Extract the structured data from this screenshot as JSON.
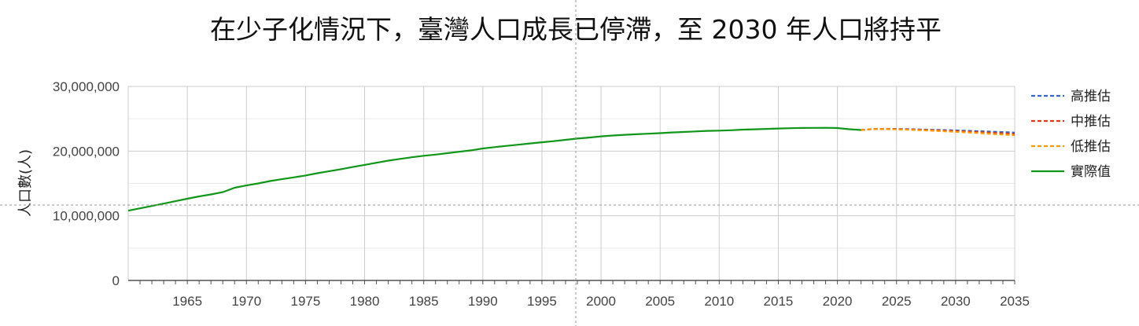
{
  "chart_data": {
    "type": "line",
    "title": "在少子化情況下，臺灣人口成長已停滯，至 2030 年人口將持平",
    "xlabel": "",
    "ylabel": "人口數(人)",
    "xlim": [
      1960,
      2035
    ],
    "ylim": [
      0,
      30000000
    ],
    "x_ticks": [
      "1965",
      "1970",
      "1975",
      "1980",
      "1985",
      "1990",
      "1995",
      "2000",
      "2005",
      "2010",
      "2015",
      "2020",
      "2025",
      "2030",
      "2035"
    ],
    "y_ticks": [
      "0",
      "10,000,000",
      "20,000,000",
      "30,000,000"
    ],
    "grid": true,
    "legend_position": "right",
    "series": [
      {
        "name": "高推估",
        "style": "dashed",
        "color": "#3366cc",
        "x": [
          2022,
          2023,
          2024,
          2025,
          2026,
          2027,
          2028,
          2029,
          2030,
          2031,
          2032,
          2033,
          2034,
          2035
        ],
        "y": [
          23260000,
          23420000,
          23440000,
          23420000,
          23390000,
          23350000,
          23300000,
          23250000,
          23200000,
          23140000,
          23080000,
          23010000,
          22940000,
          22860000
        ]
      },
      {
        "name": "中推估",
        "style": "dashed",
        "color": "#dc3912",
        "x": [
          2022,
          2023,
          2024,
          2025,
          2026,
          2027,
          2028,
          2029,
          2030,
          2031,
          2032,
          2033,
          2034,
          2035
        ],
        "y": [
          23260000,
          23410000,
          23420000,
          23390000,
          23340000,
          23290000,
          23230000,
          23160000,
          23090000,
          23010000,
          22930000,
          22840000,
          22750000,
          22650000
        ]
      },
      {
        "name": "低推估",
        "style": "dashed",
        "color": "#ff9900",
        "x": [
          2022,
          2023,
          2024,
          2025,
          2026,
          2027,
          2028,
          2029,
          2030,
          2031,
          2032,
          2033,
          2034,
          2035
        ],
        "y": [
          23260000,
          23400000,
          23400000,
          23360000,
          23300000,
          23230000,
          23150000,
          23070000,
          22980000,
          22880000,
          22780000,
          22670000,
          22560000,
          22440000
        ]
      },
      {
        "name": "實際值",
        "style": "solid",
        "color": "#109618",
        "x": [
          1960,
          1961,
          1962,
          1963,
          1964,
          1965,
          1966,
          1967,
          1968,
          1969,
          1970,
          1971,
          1972,
          1973,
          1974,
          1975,
          1976,
          1977,
          1978,
          1979,
          1980,
          1981,
          1982,
          1983,
          1984,
          1985,
          1986,
          1987,
          1988,
          1989,
          1990,
          1991,
          1992,
          1993,
          1994,
          1995,
          1996,
          1997,
          1998,
          1999,
          2000,
          2001,
          2002,
          2003,
          2004,
          2005,
          2006,
          2007,
          2008,
          2009,
          2010,
          2011,
          2012,
          2013,
          2014,
          2015,
          2016,
          2017,
          2018,
          2019,
          2020,
          2021,
          2022
        ],
        "y": [
          10790000,
          11150000,
          11510000,
          11880000,
          12260000,
          12630000,
          12990000,
          13300000,
          13650000,
          14330000,
          14680000,
          15000000,
          15370000,
          15660000,
          15930000,
          16230000,
          16580000,
          16890000,
          17200000,
          17540000,
          17870000,
          18190000,
          18520000,
          18790000,
          19040000,
          19280000,
          19460000,
          19680000,
          19900000,
          20110000,
          20400000,
          20610000,
          20800000,
          20990000,
          21180000,
          21360000,
          21530000,
          21740000,
          21930000,
          22090000,
          22280000,
          22410000,
          22520000,
          22600000,
          22690000,
          22770000,
          22880000,
          22960000,
          23040000,
          23120000,
          23160000,
          23220000,
          23320000,
          23370000,
          23430000,
          23490000,
          23540000,
          23570000,
          23590000,
          23600000,
          23560000,
          23380000,
          23260000
        ]
      }
    ]
  }
}
